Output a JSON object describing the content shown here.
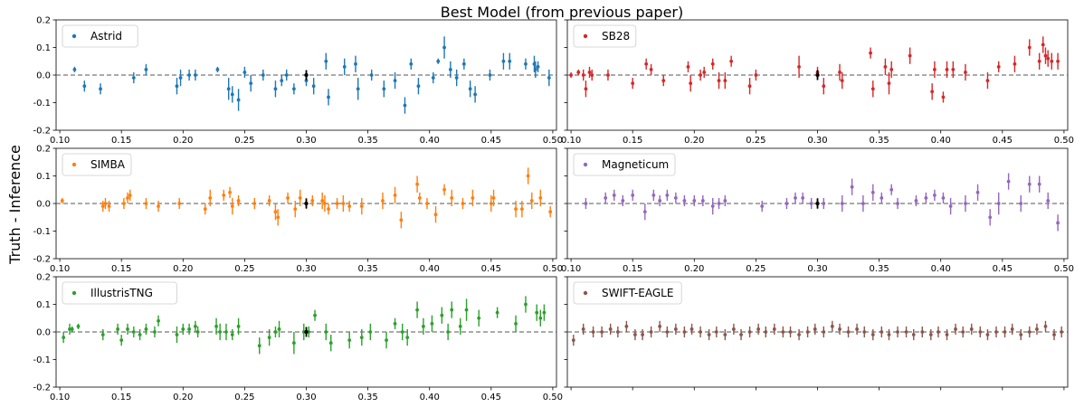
{
  "title": "Best Model (from previous paper)",
  "ylabel": "Truth - Inference",
  "chart_data": {
    "type": "scatter",
    "xlim": [
      0.097,
      0.503
    ],
    "ylim": [
      -0.2,
      0.2
    ],
    "xticks": [
      "0.10",
      "0.15",
      "0.20",
      "0.25",
      "0.30",
      "0.35",
      "0.40",
      "0.45",
      "0.50"
    ],
    "yticks": [
      "0.2",
      "0.1",
      "0.0",
      "-0.1",
      "-0.2"
    ],
    "reference_line": 0.0,
    "highlight_x": 0.3,
    "panels": [
      {
        "name": "Astrid",
        "color": "#1f77b4",
        "x": [
          0.112,
          0.12,
          0.133,
          0.16,
          0.17,
          0.195,
          0.198,
          0.205,
          0.21,
          0.228,
          0.237,
          0.24,
          0.245,
          0.25,
          0.255,
          0.265,
          0.275,
          0.28,
          0.284,
          0.29,
          0.3,
          0.306,
          0.316,
          0.318,
          0.331,
          0.34,
          0.342,
          0.353,
          0.363,
          0.372,
          0.38,
          0.385,
          0.391,
          0.403,
          0.407,
          0.412,
          0.417,
          0.422,
          0.428,
          0.433,
          0.437,
          0.449,
          0.46,
          0.465,
          0.478,
          0.485,
          0.486,
          0.488,
          0.497
        ],
        "y": [
          0.02,
          -0.04,
          -0.05,
          -0.01,
          0.02,
          -0.04,
          -0.01,
          0.0,
          0.0,
          0.02,
          -0.05,
          -0.07,
          -0.09,
          0.01,
          -0.03,
          0.0,
          -0.05,
          -0.02,
          0.0,
          -0.05,
          -0.02,
          -0.04,
          0.05,
          -0.08,
          0.03,
          0.04,
          -0.05,
          0.0,
          -0.05,
          -0.02,
          -0.11,
          0.04,
          -0.04,
          -0.01,
          0.05,
          0.1,
          0.02,
          -0.01,
          0.04,
          -0.05,
          -0.07,
          0.0,
          0.05,
          0.05,
          0.04,
          0.04,
          0.02,
          0.03,
          -0.01
        ],
        "err": [
          0.01,
          0.02,
          0.02,
          0.02,
          0.02,
          0.03,
          0.03,
          0.02,
          0.02,
          0.01,
          0.04,
          0.03,
          0.04,
          0.02,
          0.03,
          0.02,
          0.03,
          0.02,
          0.02,
          0.02,
          0.02,
          0.03,
          0.03,
          0.03,
          0.03,
          0.03,
          0.04,
          0.02,
          0.03,
          0.03,
          0.03,
          0.02,
          0.03,
          0.02,
          0.01,
          0.04,
          0.03,
          0.03,
          0.02,
          0.03,
          0.03,
          0.02,
          0.03,
          0.03,
          0.02,
          0.03,
          0.03,
          0.02,
          0.03
        ]
      },
      {
        "name": "SB28",
        "color": "#d62728",
        "x": [
          0.1,
          0.106,
          0.11,
          0.112,
          0.115,
          0.117,
          0.13,
          0.15,
          0.161,
          0.165,
          0.175,
          0.195,
          0.197,
          0.205,
          0.208,
          0.215,
          0.22,
          0.225,
          0.23,
          0.245,
          0.25,
          0.285,
          0.3,
          0.305,
          0.318,
          0.32,
          0.343,
          0.345,
          0.355,
          0.358,
          0.36,
          0.375,
          0.393,
          0.395,
          0.402,
          0.405,
          0.41,
          0.42,
          0.438,
          0.447,
          0.46,
          0.472,
          0.48,
          0.483,
          0.485,
          0.487,
          0.49,
          0.495
        ],
        "y": [
          0.0,
          0.01,
          0.0,
          -0.05,
          0.01,
          0.0,
          0.0,
          -0.03,
          0.04,
          0.02,
          -0.02,
          0.03,
          -0.03,
          0.0,
          0.01,
          0.04,
          -0.02,
          -0.02,
          0.05,
          -0.04,
          0.0,
          0.03,
          0.01,
          -0.04,
          0.01,
          -0.02,
          0.08,
          -0.05,
          0.03,
          -0.03,
          0.02,
          0.07,
          -0.06,
          0.02,
          -0.08,
          0.02,
          0.02,
          0.01,
          -0.02,
          0.03,
          0.04,
          0.1,
          0.05,
          0.11,
          0.07,
          0.06,
          0.05,
          0.05
        ],
        "err": [
          0.01,
          0.01,
          0.02,
          0.03,
          0.02,
          0.02,
          0.02,
          0.02,
          0.02,
          0.02,
          0.02,
          0.02,
          0.03,
          0.02,
          0.02,
          0.02,
          0.03,
          0.03,
          0.02,
          0.03,
          0.02,
          0.04,
          0.02,
          0.03,
          0.03,
          0.03,
          0.02,
          0.03,
          0.03,
          0.04,
          0.03,
          0.03,
          0.03,
          0.03,
          0.02,
          0.03,
          0.03,
          0.03,
          0.03,
          0.02,
          0.03,
          0.03,
          0.03,
          0.03,
          0.03,
          0.03,
          0.03,
          0.03
        ]
      },
      {
        "name": "SIMBA",
        "color": "#ff7f0e",
        "x": [
          0.102,
          0.135,
          0.137,
          0.14,
          0.152,
          0.155,
          0.157,
          0.17,
          0.18,
          0.197,
          0.218,
          0.222,
          0.233,
          0.238,
          0.24,
          0.245,
          0.258,
          0.27,
          0.275,
          0.277,
          0.285,
          0.291,
          0.295,
          0.3,
          0.305,
          0.313,
          0.315,
          0.318,
          0.325,
          0.33,
          0.335,
          0.345,
          0.362,
          0.372,
          0.377,
          0.39,
          0.392,
          0.398,
          0.405,
          0.412,
          0.418,
          0.427,
          0.435,
          0.45,
          0.452,
          0.47,
          0.475,
          0.48,
          0.483,
          0.49,
          0.498
        ],
        "y": [
          0.01,
          -0.01,
          0.0,
          -0.01,
          0.0,
          0.02,
          0.03,
          0.0,
          -0.01,
          0.0,
          -0.02,
          0.02,
          0.03,
          0.04,
          -0.01,
          0.01,
          0.0,
          0.01,
          -0.03,
          -0.05,
          0.02,
          -0.02,
          0.02,
          0.0,
          0.01,
          0.01,
          0.0,
          -0.02,
          0.0,
          0.0,
          -0.01,
          -0.01,
          0.01,
          0.03,
          -0.06,
          0.07,
          0.02,
          0.0,
          -0.04,
          0.05,
          0.02,
          0.0,
          0.02,
          0.0,
          0.02,
          -0.02,
          -0.02,
          0.1,
          0.01,
          0.02,
          -0.03
        ],
        "err": [
          0.01,
          0.02,
          0.02,
          0.02,
          0.02,
          0.02,
          0.02,
          0.02,
          0.02,
          0.02,
          0.02,
          0.03,
          0.02,
          0.02,
          0.03,
          0.02,
          0.02,
          0.02,
          0.03,
          0.03,
          0.02,
          0.03,
          0.03,
          0.02,
          0.02,
          0.03,
          0.03,
          0.02,
          0.02,
          0.03,
          0.02,
          0.03,
          0.03,
          0.03,
          0.03,
          0.03,
          0.02,
          0.02,
          0.03,
          0.02,
          0.03,
          0.02,
          0.03,
          0.03,
          0.03,
          0.03,
          0.03,
          0.03,
          0.03,
          0.03,
          0.02
        ]
      },
      {
        "name": "Magneticum",
        "color": "#9467bd",
        "x": [
          0.112,
          0.128,
          0.135,
          0.142,
          0.15,
          0.16,
          0.167,
          0.172,
          0.178,
          0.185,
          0.192,
          0.2,
          0.207,
          0.215,
          0.22,
          0.225,
          0.255,
          0.275,
          0.282,
          0.288,
          0.295,
          0.3,
          0.305,
          0.32,
          0.328,
          0.337,
          0.345,
          0.352,
          0.36,
          0.365,
          0.38,
          0.388,
          0.395,
          0.402,
          0.408,
          0.42,
          0.43,
          0.44,
          0.447,
          0.455,
          0.465,
          0.472,
          0.48,
          0.487,
          0.495
        ],
        "y": [
          0.0,
          0.02,
          0.03,
          0.01,
          0.03,
          -0.03,
          0.03,
          0.01,
          0.03,
          0.02,
          0.01,
          0.01,
          0.01,
          -0.01,
          0.0,
          0.01,
          -0.01,
          0.0,
          0.02,
          0.02,
          0.0,
          0.0,
          0.0,
          0.0,
          0.06,
          0.0,
          0.04,
          0.02,
          0.05,
          0.0,
          0.01,
          0.02,
          0.03,
          0.02,
          -0.01,
          0.0,
          0.04,
          -0.05,
          0.0,
          0.08,
          0.0,
          0.07,
          0.07,
          0.01,
          -0.07
        ],
        "err": [
          0.02,
          0.02,
          0.02,
          0.02,
          0.02,
          0.03,
          0.02,
          0.02,
          0.02,
          0.02,
          0.02,
          0.02,
          0.02,
          0.03,
          0.02,
          0.02,
          0.02,
          0.02,
          0.02,
          0.02,
          0.02,
          0.02,
          0.02,
          0.03,
          0.03,
          0.03,
          0.03,
          0.02,
          0.02,
          0.02,
          0.02,
          0.02,
          0.02,
          0.02,
          0.03,
          0.03,
          0.03,
          0.03,
          0.04,
          0.03,
          0.03,
          0.03,
          0.03,
          0.03,
          0.03
        ]
      },
      {
        "name": "IllustrisTNG",
        "color": "#2ca02c",
        "x": [
          0.103,
          0.108,
          0.11,
          0.115,
          0.135,
          0.147,
          0.15,
          0.155,
          0.16,
          0.165,
          0.17,
          0.177,
          0.18,
          0.195,
          0.2,
          0.205,
          0.21,
          0.212,
          0.227,
          0.23,
          0.235,
          0.24,
          0.245,
          0.262,
          0.27,
          0.275,
          0.278,
          0.29,
          0.298,
          0.302,
          0.307,
          0.316,
          0.32,
          0.335,
          0.345,
          0.352,
          0.365,
          0.372,
          0.378,
          0.382,
          0.39,
          0.395,
          0.402,
          0.41,
          0.415,
          0.418,
          0.425,
          0.43,
          0.44,
          0.455,
          0.47,
          0.478,
          0.487,
          0.49,
          0.493
        ],
        "y": [
          -0.02,
          0.01,
          0.01,
          0.02,
          -0.01,
          0.01,
          -0.03,
          0.01,
          0.0,
          -0.01,
          0.01,
          0.0,
          0.04,
          -0.01,
          0.01,
          0.01,
          0.02,
          0.0,
          0.02,
          0.0,
          0.0,
          -0.01,
          0.02,
          -0.05,
          -0.02,
          0.0,
          0.01,
          -0.04,
          0.0,
          0.0,
          0.06,
          0.0,
          -0.04,
          -0.03,
          -0.02,
          0.0,
          -0.03,
          0.03,
          0.0,
          -0.02,
          0.08,
          0.02,
          0.03,
          0.06,
          0.0,
          0.08,
          0.02,
          0.08,
          0.05,
          0.07,
          0.03,
          0.1,
          0.07,
          0.05,
          0.07
        ],
        "err": [
          0.02,
          0.02,
          0.01,
          0.01,
          0.02,
          0.02,
          0.02,
          0.02,
          0.02,
          0.02,
          0.02,
          0.02,
          0.02,
          0.03,
          0.02,
          0.02,
          0.02,
          0.02,
          0.03,
          0.03,
          0.03,
          0.02,
          0.03,
          0.03,
          0.03,
          0.02,
          0.03,
          0.04,
          0.03,
          0.02,
          0.02,
          0.03,
          0.03,
          0.03,
          0.03,
          0.03,
          0.03,
          0.02,
          0.03,
          0.03,
          0.03,
          0.03,
          0.03,
          0.03,
          0.03,
          0.03,
          0.03,
          0.04,
          0.03,
          0.02,
          0.03,
          0.03,
          0.03,
          0.03,
          0.03
        ]
      },
      {
        "name": "SWIFT-EAGLE",
        "color": "#8c564b",
        "x": [
          0.102,
          0.11,
          0.118,
          0.125,
          0.132,
          0.138,
          0.145,
          0.152,
          0.158,
          0.165,
          0.172,
          0.178,
          0.185,
          0.192,
          0.198,
          0.205,
          0.212,
          0.218,
          0.225,
          0.232,
          0.238,
          0.245,
          0.252,
          0.258,
          0.265,
          0.272,
          0.278,
          0.285,
          0.292,
          0.298,
          0.305,
          0.312,
          0.318,
          0.325,
          0.332,
          0.338,
          0.345,
          0.352,
          0.358,
          0.365,
          0.372,
          0.378,
          0.385,
          0.392,
          0.398,
          0.405,
          0.412,
          0.418,
          0.425,
          0.432,
          0.438,
          0.445,
          0.452,
          0.458,
          0.465,
          0.472,
          0.478,
          0.485,
          0.492,
          0.498
        ],
        "y": [
          -0.03,
          0.01,
          0.0,
          0.0,
          0.01,
          0.0,
          0.02,
          -0.01,
          -0.01,
          0.0,
          0.02,
          0.0,
          0.01,
          0.0,
          0.01,
          0.0,
          -0.01,
          0.0,
          -0.01,
          0.01,
          -0.01,
          0.0,
          0.01,
          0.0,
          0.01,
          0.0,
          0.0,
          -0.01,
          0.0,
          0.01,
          0.0,
          0.02,
          0.01,
          0.0,
          0.01,
          0.0,
          -0.01,
          0.0,
          -0.01,
          0.0,
          0.0,
          -0.01,
          0.0,
          -0.01,
          0.0,
          -0.01,
          0.01,
          0.0,
          0.01,
          0.0,
          -0.01,
          0.0,
          0.0,
          0.01,
          -0.01,
          0.0,
          0.01,
          0.02,
          -0.01,
          0.0
        ],
        "err": [
          0.02,
          0.02,
          0.02,
          0.02,
          0.02,
          0.02,
          0.02,
          0.02,
          0.02,
          0.02,
          0.02,
          0.02,
          0.02,
          0.02,
          0.02,
          0.02,
          0.02,
          0.02,
          0.02,
          0.02,
          0.02,
          0.02,
          0.02,
          0.02,
          0.02,
          0.02,
          0.02,
          0.02,
          0.02,
          0.02,
          0.02,
          0.02,
          0.02,
          0.02,
          0.02,
          0.02,
          0.02,
          0.02,
          0.02,
          0.02,
          0.02,
          0.02,
          0.02,
          0.02,
          0.02,
          0.02,
          0.02,
          0.02,
          0.02,
          0.02,
          0.02,
          0.02,
          0.02,
          0.02,
          0.02,
          0.02,
          0.02,
          0.02,
          0.02,
          0.02
        ]
      }
    ]
  }
}
